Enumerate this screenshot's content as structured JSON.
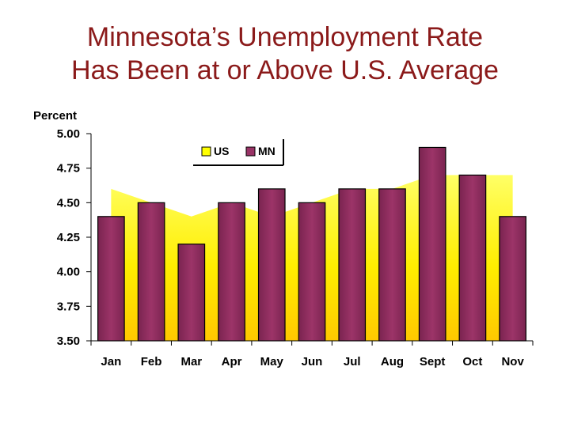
{
  "title_line1": "Minnesota’s Unemployment Rate",
  "title_line2": "Has Been at or Above U.S. Average",
  "chart_data": {
    "type": "bar",
    "ylabel": "Percent",
    "xlabel": "",
    "ylim": [
      3.5,
      5.0
    ],
    "yticks": [
      "5.00",
      "4.75",
      "4.50",
      "4.25",
      "4.00",
      "3.75",
      "3.50"
    ],
    "ytick_values": [
      5.0,
      4.75,
      4.5,
      4.25,
      4.0,
      3.75,
      3.5
    ],
    "categories": [
      "Jan",
      "Feb",
      "Mar",
      "Apr",
      "May",
      "Jun",
      "Jul",
      "Aug",
      "Sept",
      "Oct",
      "Nov"
    ],
    "series": [
      {
        "name": "US",
        "type": "area",
        "color": "#ffff00",
        "values": [
          4.6,
          4.5,
          4.4,
          4.5,
          4.4,
          4.5,
          4.6,
          4.6,
          4.7,
          4.7,
          4.7
        ]
      },
      {
        "name": "MN",
        "type": "bar",
        "color": "#993366",
        "values": [
          4.4,
          4.5,
          4.2,
          4.5,
          4.6,
          4.5,
          4.6,
          4.6,
          4.9,
          4.7,
          4.4
        ]
      }
    ],
    "legend": "top",
    "grid": false
  }
}
